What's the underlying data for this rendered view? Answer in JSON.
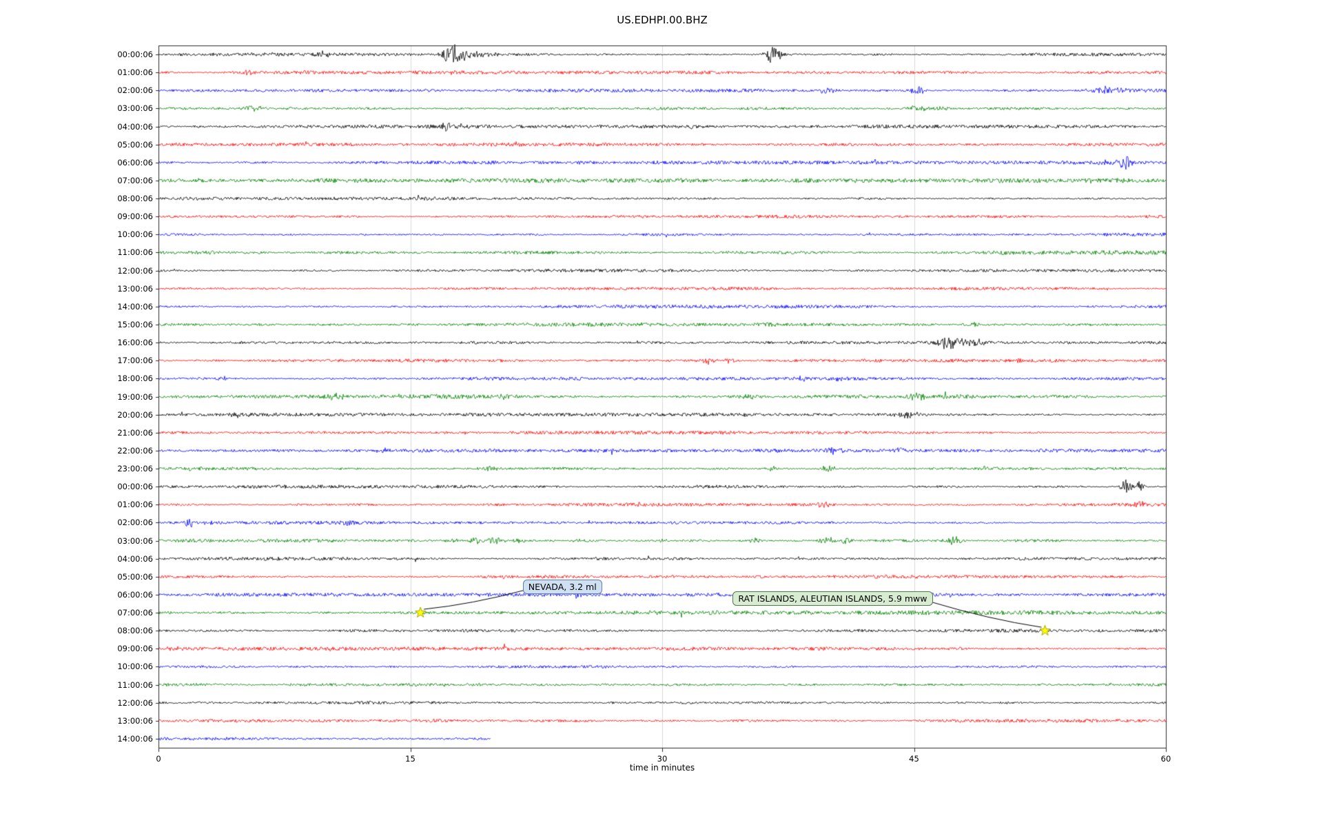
{
  "chart_data": {
    "type": "line",
    "subtype": "seismogram-dayplot",
    "title": "US.EDHPI.00.BHZ",
    "xlabel": "time in minutes",
    "xlim": [
      0,
      60
    ],
    "xticks": [
      0,
      15,
      30,
      45,
      60
    ],
    "grid": true,
    "trace_color_cycle": [
      "#000000",
      "#ff0000",
      "#0000ff",
      "#008000"
    ],
    "rows": [
      {
        "label": "00:00:06",
        "color": "#000000"
      },
      {
        "label": "01:00:06",
        "color": "#ff0000"
      },
      {
        "label": "02:00:06",
        "color": "#0000ff"
      },
      {
        "label": "03:00:06",
        "color": "#008000"
      },
      {
        "label": "04:00:06",
        "color": "#000000"
      },
      {
        "label": "05:00:06",
        "color": "#ff0000"
      },
      {
        "label": "06:00:06",
        "color": "#0000ff"
      },
      {
        "label": "07:00:06",
        "color": "#008000"
      },
      {
        "label": "08:00:06",
        "color": "#000000"
      },
      {
        "label": "09:00:06",
        "color": "#ff0000"
      },
      {
        "label": "10:00:06",
        "color": "#0000ff"
      },
      {
        "label": "11:00:06",
        "color": "#008000"
      },
      {
        "label": "12:00:06",
        "color": "#000000"
      },
      {
        "label": "13:00:06",
        "color": "#ff0000"
      },
      {
        "label": "14:00:06",
        "color": "#0000ff"
      },
      {
        "label": "15:00:06",
        "color": "#008000"
      },
      {
        "label": "16:00:06",
        "color": "#000000"
      },
      {
        "label": "17:00:06",
        "color": "#ff0000"
      },
      {
        "label": "18:00:06",
        "color": "#0000ff"
      },
      {
        "label": "19:00:06",
        "color": "#008000"
      },
      {
        "label": "20:00:06",
        "color": "#000000"
      },
      {
        "label": "21:00:06",
        "color": "#ff0000"
      },
      {
        "label": "22:00:06",
        "color": "#0000ff"
      },
      {
        "label": "23:00:06",
        "color": "#008000"
      },
      {
        "label": "00:00:06",
        "color": "#000000"
      },
      {
        "label": "01:00:06",
        "color": "#ff0000"
      },
      {
        "label": "02:00:06",
        "color": "#0000ff"
      },
      {
        "label": "03:00:06",
        "color": "#008000"
      },
      {
        "label": "04:00:06",
        "color": "#000000"
      },
      {
        "label": "05:00:06",
        "color": "#ff0000"
      },
      {
        "label": "06:00:06",
        "color": "#0000ff"
      },
      {
        "label": "07:00:06",
        "color": "#008000"
      },
      {
        "label": "08:00:06",
        "color": "#000000"
      },
      {
        "label": "09:00:06",
        "color": "#ff0000"
      },
      {
        "label": "10:00:06",
        "color": "#0000ff"
      },
      {
        "label": "11:00:06",
        "color": "#008000"
      },
      {
        "label": "12:00:06",
        "color": "#000000"
      },
      {
        "label": "13:00:06",
        "color": "#ff0000"
      },
      {
        "label": "14:00:06",
        "color": "#0000ff",
        "end_minute": 19.8,
        "amp": 2.3
      }
    ],
    "bursts": [
      {
        "row": 0,
        "t": 3.5,
        "w": 2.0,
        "a": 1.5
      },
      {
        "row": 0,
        "t": 9.7,
        "w": 0.3,
        "a": 4
      },
      {
        "row": 0,
        "t": 17.6,
        "w": 0.5,
        "a": 15
      },
      {
        "row": 0,
        "t": 18.8,
        "w": 1.0,
        "a": 4
      },
      {
        "row": 0,
        "t": 36.6,
        "w": 0.35,
        "a": 13
      },
      {
        "row": 1,
        "t": 5.3,
        "w": 0.15,
        "a": 4
      },
      {
        "row": 1,
        "t": 17.4,
        "w": 0.2,
        "a": 2.5
      },
      {
        "row": 2,
        "t": 39.8,
        "w": 0.4,
        "a": 3.5
      },
      {
        "row": 2,
        "t": 45.2,
        "w": 0.3,
        "a": 6
      },
      {
        "row": 2,
        "t": 56.4,
        "w": 0.7,
        "a": 5
      },
      {
        "row": 2,
        "t": 57.4,
        "w": 0.25,
        "a": 4
      },
      {
        "row": 3,
        "t": 5.6,
        "w": 0.5,
        "a": 4
      },
      {
        "row": 3,
        "t": 8.0,
        "w": 0.3,
        "a": 2.5
      },
      {
        "row": 3,
        "t": 45.2,
        "w": 0.4,
        "a": 4
      },
      {
        "row": 3,
        "t": 46.6,
        "w": 0.3,
        "a": 3
      },
      {
        "row": 4,
        "t": 17.0,
        "w": 0.4,
        "a": 5
      },
      {
        "row": 4,
        "t": 18.1,
        "w": 0.3,
        "a": 2.5
      },
      {
        "row": 4,
        "t": 31.6,
        "w": 0.25,
        "a": 3.5
      },
      {
        "row": 5,
        "t": 21.5,
        "w": 0.2,
        "a": 3.5
      },
      {
        "row": 6,
        "t": 25.0,
        "w": 0.2,
        "a": 2.5
      },
      {
        "row": 6,
        "t": 56.6,
        "w": 0.5,
        "a": 3.5
      },
      {
        "row": 6,
        "t": 57.6,
        "w": 0.22,
        "a": 14
      },
      {
        "row": 7,
        "t": 2.5,
        "w": 0.3,
        "a": 2
      },
      {
        "row": 15,
        "t": 48.6,
        "w": 0.4,
        "a": 3.5
      },
      {
        "row": 16,
        "t": 47.2,
        "w": 0.5,
        "a": 11
      },
      {
        "row": 16,
        "t": 48.6,
        "w": 0.6,
        "a": 5
      },
      {
        "row": 17,
        "t": 32.8,
        "w": 0.3,
        "a": 5
      },
      {
        "row": 17,
        "t": 34.1,
        "w": 0.3,
        "a": 3.5
      },
      {
        "row": 17,
        "t": 51.2,
        "w": 0.15,
        "a": 3.5
      },
      {
        "row": 18,
        "t": 3.7,
        "w": 0.4,
        "a": 3.5
      },
      {
        "row": 18,
        "t": 38.3,
        "w": 0.4,
        "a": 3
      },
      {
        "row": 18,
        "t": 40.3,
        "w": 0.3,
        "a": 3
      },
      {
        "row": 19,
        "t": 10.6,
        "w": 0.5,
        "a": 3.5
      },
      {
        "row": 19,
        "t": 14.5,
        "w": 0.3,
        "a": 2.5
      },
      {
        "row": 19,
        "t": 20.7,
        "w": 0.4,
        "a": 3
      },
      {
        "row": 19,
        "t": 35.2,
        "w": 0.4,
        "a": 3
      },
      {
        "row": 19,
        "t": 45.3,
        "w": 0.5,
        "a": 3.5
      },
      {
        "row": 20,
        "t": 4.6,
        "w": 0.4,
        "a": 3.5
      },
      {
        "row": 20,
        "t": 35.0,
        "w": 0.2,
        "a": 3.5
      },
      {
        "row": 20,
        "t": 44.7,
        "w": 0.5,
        "a": 4.5
      },
      {
        "row": 22,
        "t": 13.4,
        "w": 0.25,
        "a": 3.5
      },
      {
        "row": 22,
        "t": 40.2,
        "w": 0.3,
        "a": 7
      },
      {
        "row": 22,
        "t": 44.0,
        "w": 0.3,
        "a": 3.5
      },
      {
        "row": 23,
        "t": 2.4,
        "w": 0.4,
        "a": 3
      },
      {
        "row": 23,
        "t": 19.7,
        "w": 0.4,
        "a": 3.5
      },
      {
        "row": 23,
        "t": 36.5,
        "w": 0.3,
        "a": 3
      },
      {
        "row": 23,
        "t": 39.9,
        "w": 0.3,
        "a": 5
      },
      {
        "row": 23,
        "t": 49.4,
        "w": 0.4,
        "a": 3
      },
      {
        "row": 24,
        "t": 57.7,
        "w": 0.25,
        "a": 12
      },
      {
        "row": 24,
        "t": 58.4,
        "w": 0.2,
        "a": 7
      },
      {
        "row": 25,
        "t": 28.6,
        "w": 0.2,
        "a": 2.5
      },
      {
        "row": 25,
        "t": 39.6,
        "w": 0.3,
        "a": 4.5
      },
      {
        "row": 25,
        "t": 58.3,
        "w": 0.3,
        "a": 4.5
      },
      {
        "row": 26,
        "t": 1.8,
        "w": 0.2,
        "a": 8
      },
      {
        "row": 26,
        "t": 2.9,
        "w": 0.3,
        "a": 2.5
      },
      {
        "row": 26,
        "t": 11.4,
        "w": 0.25,
        "a": 4.5
      },
      {
        "row": 27,
        "t": 17.5,
        "w": 0.3,
        "a": 3.5
      },
      {
        "row": 27,
        "t": 18.9,
        "w": 0.3,
        "a": 4.5
      },
      {
        "row": 27,
        "t": 20.1,
        "w": 0.4,
        "a": 4.5
      },
      {
        "row": 27,
        "t": 21.5,
        "w": 0.3,
        "a": 3.5
      },
      {
        "row": 27,
        "t": 25.0,
        "w": 0.2,
        "a": 2.5
      },
      {
        "row": 27,
        "t": 30.0,
        "w": 0.2,
        "a": 2.5
      },
      {
        "row": 27,
        "t": 35.5,
        "w": 0.3,
        "a": 3.5
      },
      {
        "row": 27,
        "t": 39.9,
        "w": 0.35,
        "a": 6
      },
      {
        "row": 27,
        "t": 40.9,
        "w": 0.3,
        "a": 4.5
      },
      {
        "row": 27,
        "t": 47.3,
        "w": 0.3,
        "a": 7
      },
      {
        "row": 30,
        "t": 25.0,
        "w": 0.3,
        "a": 5
      },
      {
        "row": 31,
        "t": 15.6,
        "w": 0.2,
        "a": 2
      },
      {
        "row": 32,
        "t": 52.8,
        "w": 0.2,
        "a": 1.5
      },
      {
        "row": 33,
        "t": 1.0,
        "w": 0.4,
        "a": 2.5
      }
    ],
    "events": [
      {
        "label": "NEVADA, 3.2 ml",
        "star_row": 31,
        "star_minute": 15.6,
        "box_row": 29.6,
        "box_left_minute": 21.7,
        "box_fill": "#cfe0f2",
        "box_border": "#5b7fae",
        "star_color": "#ffff00"
      },
      {
        "label": "RAT ISLANDS, ALEUTIAN ISLANDS, 5.9 mww",
        "star_row": 32,
        "star_minute": 52.8,
        "box_row": 30.25,
        "box_left_minute": 34.2,
        "box_fill": "#d8ecd2",
        "box_border": "#4e7d47",
        "star_color": "#ffff00"
      }
    ]
  }
}
